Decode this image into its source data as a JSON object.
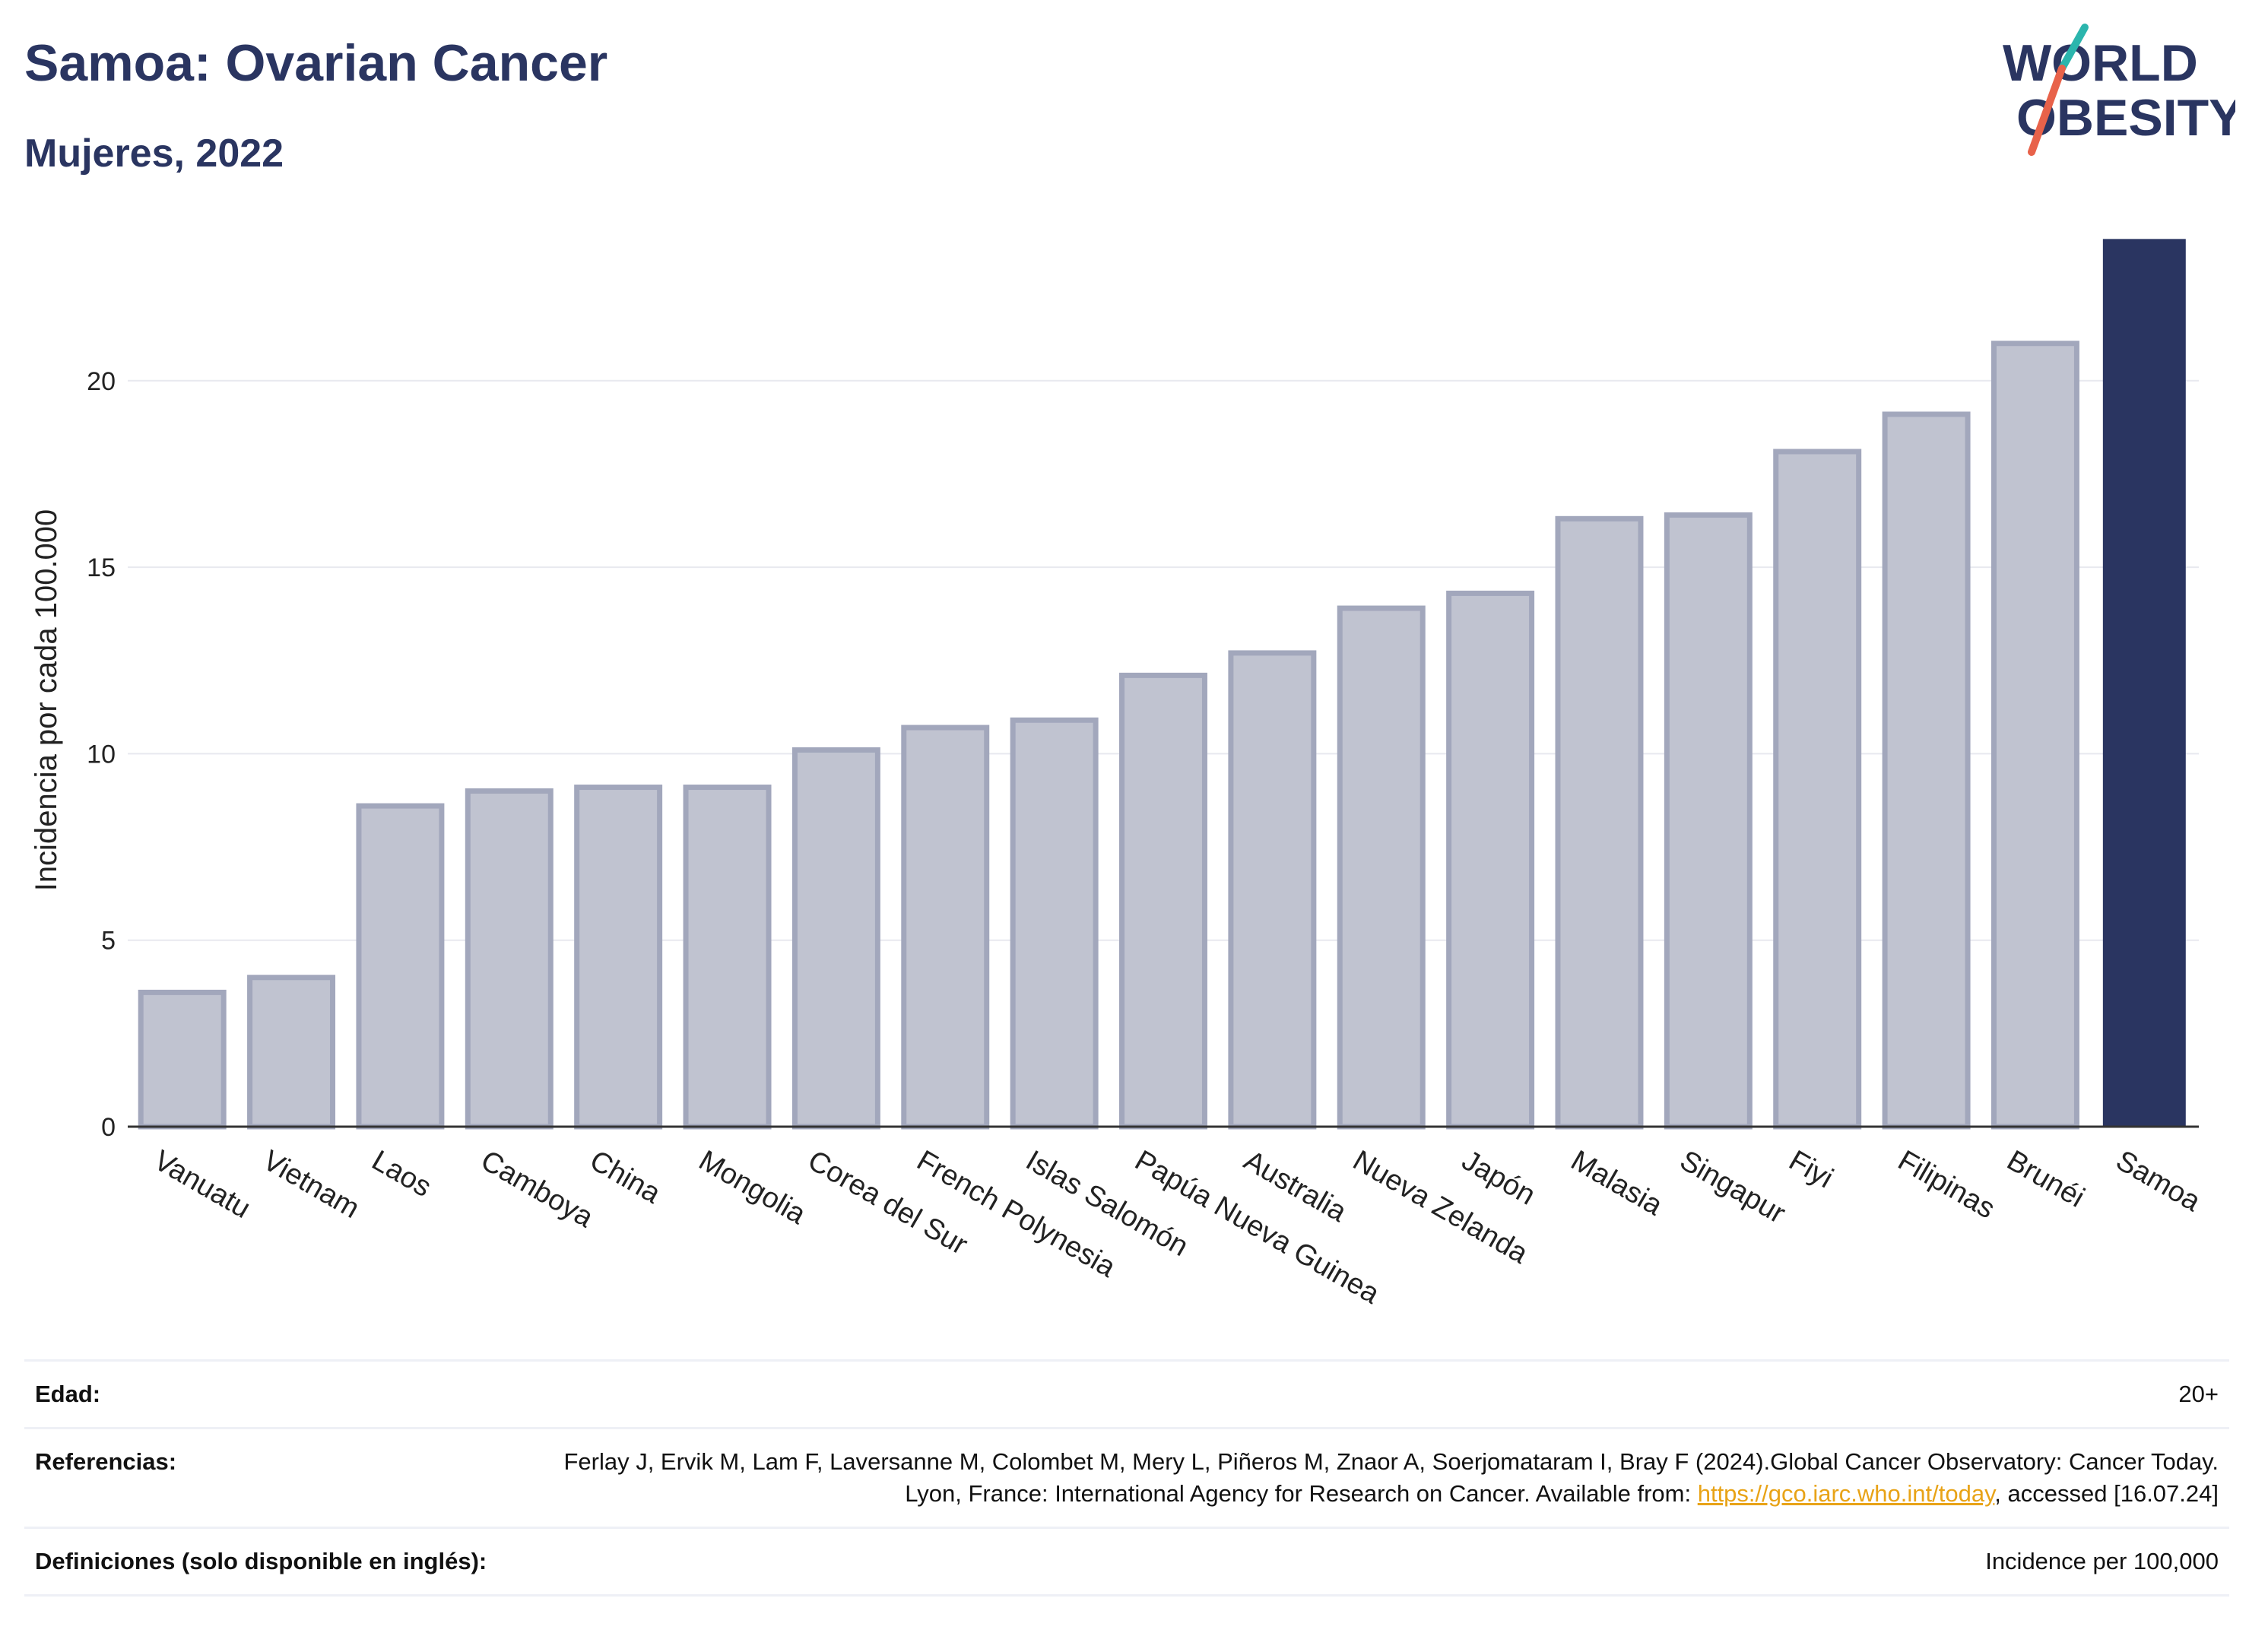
{
  "header": {
    "title": "Samoa: Ovarian Cancer",
    "subtitle": "Mujeres, 2022"
  },
  "logo": {
    "line1": "WORLD",
    "line2": "OBESITY",
    "text_color": "#2a3561",
    "accent_colors": [
      "#2bb5ad",
      "#e8624a"
    ]
  },
  "chart_data": {
    "type": "bar",
    "title": "Samoa: Ovarian Cancer",
    "subtitle": "Mujeres, 2022",
    "xlabel": "",
    "ylabel": "Incidencia por cada 100.000",
    "ylim": [
      0,
      24.5
    ],
    "yticks": [
      0,
      5,
      10,
      15,
      20
    ],
    "grid": true,
    "categories": [
      "Vanuatu",
      "Vietnam",
      "Laos",
      "Camboya",
      "China",
      "Mongolia",
      "Corea del Sur",
      "French Polynesia",
      "Islas Salomón",
      "Papúa Nueva Guinea",
      "Australia",
      "Nueva Zelanda",
      "Japón",
      "Malasia",
      "Singapur",
      "Fiyi",
      "Filipinas",
      "Brunéi",
      "Samoa"
    ],
    "values": [
      3.6,
      4.0,
      8.6,
      9.0,
      9.1,
      9.1,
      10.1,
      10.7,
      10.9,
      12.1,
      12.7,
      13.9,
      14.3,
      16.3,
      16.4,
      18.1,
      19.1,
      21.0,
      23.8
    ],
    "highlight": "Samoa",
    "colors": {
      "bar": "#c0c3d0",
      "bar_edge": "#a2a7bc",
      "highlight": "#2a3561",
      "grid": "#e8e9ef",
      "axis": "#333333"
    }
  },
  "footer": {
    "age_label": "Edad:",
    "age_value": "20+",
    "ref_label": "Referencias:",
    "ref_text_1": "Ferlay J, Ervik M, Lam F, Laversanne M, Colombet M, Mery L, Piñeros M, Znaor A, Soerjomataram I, Bray F (2024).Global Cancer Observatory: Cancer Today. Lyon, France: International Agency for Research on Cancer. Available from: ",
    "ref_link": "https://gco.iarc.who.int/today",
    "ref_text_2": ", accessed [16.07.24]",
    "def_label": "Definiciones (solo disponible en inglés):",
    "def_value": "Incidence per 100,000"
  }
}
